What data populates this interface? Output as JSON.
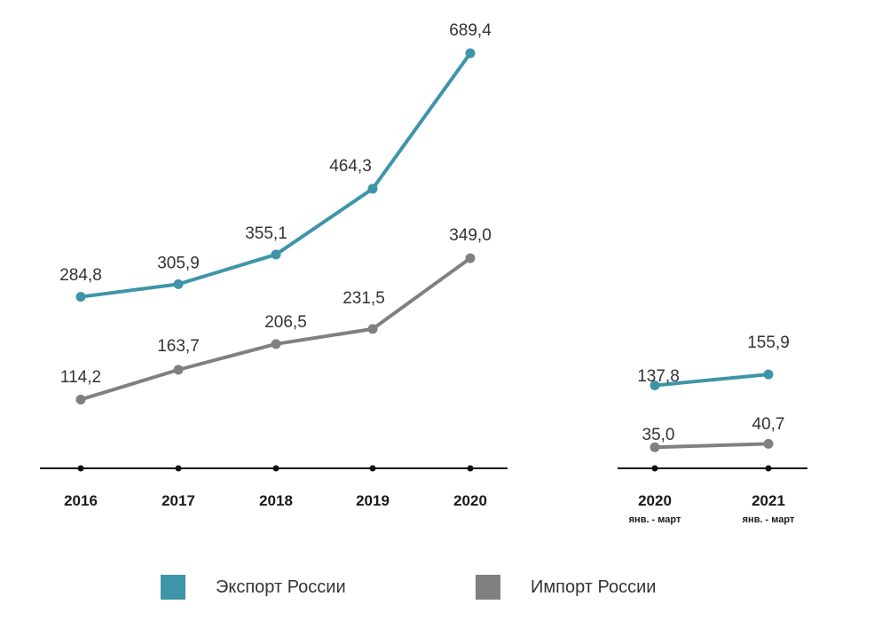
{
  "chart_data": [
    {
      "type": "line",
      "categories": [
        "2016",
        "2017",
        "2018",
        "2019",
        "2020"
      ],
      "sublabels": [
        "",
        "",
        "",
        "",
        ""
      ],
      "series": [
        {
          "name": "Экспорт России",
          "values": [
            284.8,
            305.9,
            355.1,
            464.3,
            689.4
          ],
          "labels": [
            "284,8",
            "305,9",
            "355,1",
            "464,3",
            "689,4"
          ]
        },
        {
          "name": "Импорт России",
          "values": [
            114.2,
            163.7,
            206.5,
            231.5,
            349.0
          ],
          "labels": [
            "114,2",
            "163,7",
            "206,5",
            "231,5",
            "349,0"
          ]
        }
      ]
    },
    {
      "type": "line",
      "categories": [
        "2020",
        "2021"
      ],
      "sublabels": [
        "янв. - март",
        "янв. - март"
      ],
      "series": [
        {
          "name": "Экспорт России",
          "values": [
            137.8,
            155.9
          ],
          "labels": [
            "137,8",
            "155,9"
          ]
        },
        {
          "name": "Импорт России",
          "values": [
            35.0,
            40.7
          ],
          "labels": [
            "35,0",
            "40,7"
          ]
        }
      ]
    }
  ],
  "legend": [
    {
      "label": "Экспорт России",
      "color": "#3e95a9"
    },
    {
      "label": "Импорт России",
      "color": "#808080"
    }
  ],
  "colors": {
    "export": "#3e95a9",
    "import": "#808080",
    "axis": "#111111"
  }
}
